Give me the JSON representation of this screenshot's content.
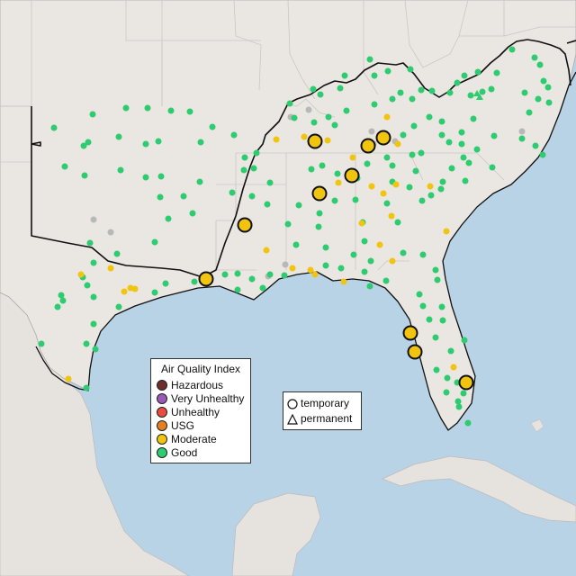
{
  "colors": {
    "ocean": "#b9d3e6",
    "land": "#eae6e1",
    "foreign_land": "#e6e2de",
    "state_border": "#c8c8c8",
    "region_border": "#111111",
    "good": "#2ecc71",
    "moderate": "#f1c40f",
    "usg": "#e67e22",
    "unhealthy": "#e74c3c",
    "very_unhealthy": "#9b59b6",
    "hazardous": "#6d2e2a",
    "no_data": "#b8b8b8"
  },
  "legend": {
    "title": "Air Quality Index",
    "items": [
      {
        "label": "Hazardous",
        "color": "#6d2e2a"
      },
      {
        "label": "Very Unhealthy",
        "color": "#9b59b6"
      },
      {
        "label": "Unhealthy",
        "color": "#e74c3c"
      },
      {
        "label": "USG",
        "color": "#e67e22"
      },
      {
        "label": "Moderate",
        "color": "#f1c40f"
      },
      {
        "label": "Good",
        "color": "#2ecc71"
      }
    ]
  },
  "monitor_types": {
    "temporary": "temporary",
    "permanent": "permanent"
  },
  "monitors": {
    "moderate_large": [
      [
        350,
        157
      ],
      [
        409,
        162
      ],
      [
        426,
        153
      ],
      [
        391,
        195
      ],
      [
        355,
        215
      ],
      [
        272,
        250
      ],
      [
        229,
        310
      ],
      [
        456,
        370
      ],
      [
        461,
        391
      ],
      [
        518,
        425
      ]
    ],
    "moderate_small": [
      [
        307,
        155
      ],
      [
        338,
        152
      ],
      [
        392,
        175
      ],
      [
        376,
        203
      ],
      [
        413,
        207
      ],
      [
        440,
        205
      ],
      [
        426,
        215
      ],
      [
        478,
        207
      ],
      [
        442,
        160
      ],
      [
        430,
        130
      ],
      [
        364,
        156
      ],
      [
        402,
        248
      ],
      [
        435,
        240
      ],
      [
        422,
        272
      ],
      [
        436,
        290
      ],
      [
        296,
        278
      ],
      [
        123,
        298
      ],
      [
        90,
        305
      ],
      [
        145,
        320
      ],
      [
        138,
        324
      ],
      [
        150,
        321
      ],
      [
        325,
        298
      ],
      [
        345,
        300
      ],
      [
        350,
        305
      ],
      [
        382,
        313
      ],
      [
        496,
        257
      ],
      [
        504,
        408
      ],
      [
        76,
        421
      ]
    ],
    "good": [
      [
        60,
        142
      ],
      [
        103,
        127
      ],
      [
        140,
        120
      ],
      [
        164,
        120
      ],
      [
        190,
        123
      ],
      [
        211,
        124
      ],
      [
        93,
        162
      ],
      [
        98,
        158
      ],
      [
        132,
        152
      ],
      [
        162,
        160
      ],
      [
        176,
        157
      ],
      [
        223,
        158
      ],
      [
        236,
        141
      ],
      [
        260,
        150
      ],
      [
        72,
        185
      ],
      [
        94,
        195
      ],
      [
        134,
        189
      ],
      [
        162,
        197
      ],
      [
        179,
        196
      ],
      [
        222,
        202
      ],
      [
        178,
        219
      ],
      [
        204,
        218
      ],
      [
        214,
        237
      ],
      [
        187,
        243
      ],
      [
        100,
        270
      ],
      [
        172,
        269
      ],
      [
        130,
        282
      ],
      [
        104,
        292
      ],
      [
        92,
        308
      ],
      [
        97,
        317
      ],
      [
        68,
        328
      ],
      [
        70,
        334
      ],
      [
        64,
        341
      ],
      [
        104,
        330
      ],
      [
        132,
        341
      ],
      [
        172,
        325
      ],
      [
        184,
        315
      ],
      [
        216,
        313
      ],
      [
        250,
        305
      ],
      [
        264,
        304
      ],
      [
        280,
        310
      ],
      [
        292,
        320
      ],
      [
        264,
        322
      ],
      [
        300,
        305
      ],
      [
        316,
        306
      ],
      [
        104,
        360
      ],
      [
        96,
        382
      ],
      [
        106,
        388
      ],
      [
        46,
        382
      ],
      [
        96,
        431
      ],
      [
        272,
        175
      ],
      [
        271,
        189
      ],
      [
        282,
        187
      ],
      [
        285,
        170
      ],
      [
        258,
        214
      ],
      [
        280,
        218
      ],
      [
        300,
        203
      ],
      [
        297,
        227
      ],
      [
        320,
        249
      ],
      [
        332,
        228
      ],
      [
        355,
        237
      ],
      [
        372,
        223
      ],
      [
        346,
        188
      ],
      [
        358,
        184
      ],
      [
        375,
        193
      ],
      [
        397,
        198
      ],
      [
        408,
        182
      ],
      [
        395,
        222
      ],
      [
        403,
        247
      ],
      [
        405,
        268
      ],
      [
        393,
        283
      ],
      [
        412,
        290
      ],
      [
        362,
        275
      ],
      [
        354,
        252
      ],
      [
        329,
        272
      ],
      [
        411,
        167
      ],
      [
        430,
        175
      ],
      [
        458,
        172
      ],
      [
        468,
        170
      ],
      [
        448,
        150
      ],
      [
        460,
        140
      ],
      [
        477,
        130
      ],
      [
        491,
        150
      ],
      [
        499,
        158
      ],
      [
        513,
        160
      ],
      [
        530,
        166
      ],
      [
        515,
        175
      ],
      [
        502,
        187
      ],
      [
        517,
        201
      ],
      [
        492,
        202
      ],
      [
        549,
        151
      ],
      [
        580,
        154
      ],
      [
        595,
        162
      ],
      [
        603,
        172
      ],
      [
        547,
        186
      ],
      [
        521,
        181
      ],
      [
        490,
        210
      ],
      [
        479,
        217
      ],
      [
        469,
        223
      ],
      [
        455,
        208
      ],
      [
        462,
        190
      ],
      [
        436,
        184
      ],
      [
        436,
        202
      ],
      [
        430,
        226
      ],
      [
        442,
        247
      ],
      [
        448,
        281
      ],
      [
        470,
        283
      ],
      [
        484,
        300
      ],
      [
        486,
        311
      ],
      [
        466,
        327
      ],
      [
        470,
        340
      ],
      [
        491,
        341
      ],
      [
        492,
        356
      ],
      [
        477,
        355
      ],
      [
        484,
        375
      ],
      [
        501,
        390
      ],
      [
        516,
        378
      ],
      [
        485,
        411
      ],
      [
        508,
        425
      ],
      [
        515,
        437
      ],
      [
        509,
        446
      ],
      [
        510,
        452
      ],
      [
        520,
        470
      ],
      [
        497,
        420
      ],
      [
        496,
        436
      ],
      [
        429,
        312
      ],
      [
        411,
        318
      ],
      [
        405,
        302
      ],
      [
        362,
        295
      ],
      [
        379,
        298
      ],
      [
        348,
        99
      ],
      [
        356,
        105
      ],
      [
        378,
        98
      ],
      [
        383,
        84
      ],
      [
        411,
        66
      ],
      [
        416,
        84
      ],
      [
        431,
        79
      ],
      [
        456,
        77
      ],
      [
        436,
        110
      ],
      [
        416,
        116
      ],
      [
        385,
        123
      ],
      [
        372,
        139
      ],
      [
        349,
        136
      ],
      [
        327,
        131
      ],
      [
        322,
        115
      ],
      [
        365,
        130
      ],
      [
        445,
        103
      ],
      [
        468,
        100
      ],
      [
        480,
        101
      ],
      [
        500,
        103
      ],
      [
        508,
        92
      ],
      [
        516,
        84
      ],
      [
        531,
        80
      ],
      [
        536,
        102
      ],
      [
        523,
        106
      ],
      [
        546,
        99
      ],
      [
        552,
        81
      ],
      [
        569,
        55
      ],
      [
        594,
        64
      ],
      [
        600,
        72
      ],
      [
        604,
        90
      ],
      [
        609,
        97
      ],
      [
        598,
        110
      ],
      [
        610,
        114
      ],
      [
        583,
        103
      ],
      [
        588,
        125
      ],
      [
        526,
        132
      ],
      [
        491,
        135
      ],
      [
        513,
        147
      ],
      [
        458,
        110
      ]
    ],
    "no_data": [
      [
        343,
        122
      ],
      [
        323,
        130
      ],
      [
        104,
        244
      ],
      [
        123,
        258
      ],
      [
        413,
        146
      ],
      [
        580,
        146
      ],
      [
        298,
        307
      ],
      [
        317,
        294
      ],
      [
        415,
        160
      ],
      [
        439,
        157
      ]
    ],
    "permanent_triangles": [
      [
        530,
        104
      ],
      [
        533,
        108
      ]
    ]
  }
}
